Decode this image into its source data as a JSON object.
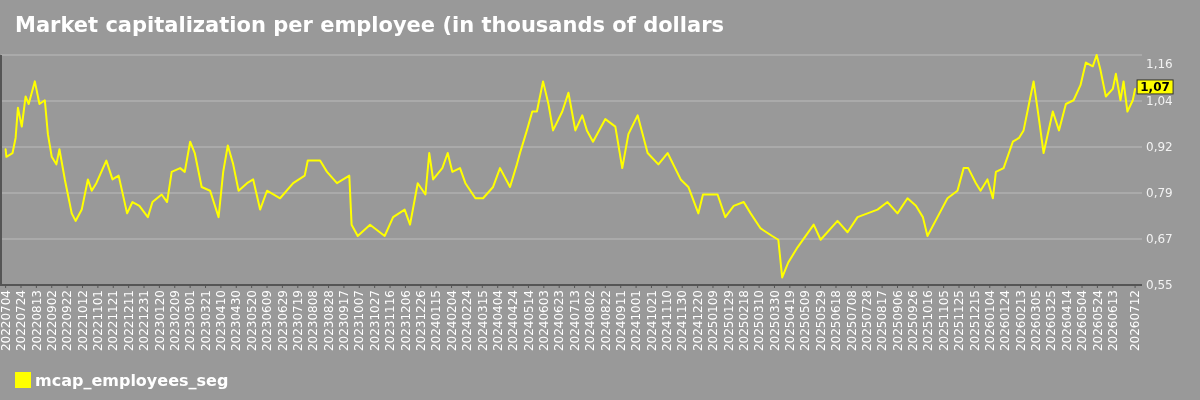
{
  "chart_data": {
    "type": "line",
    "title": "Market capitalization per employee (in thousands of dollars",
    "x": [
      "2022-07-04",
      "2022-07-05",
      "2022-07-13",
      "2022-07-17",
      "2022-07-20",
      "2022-07-25",
      "2022-07-30",
      "2022-08-03",
      "2022-08-11",
      "2022-08-17",
      "2022-08-24",
      "2022-08-28",
      "2022-09-02",
      "2022-09-08",
      "2022-09-12",
      "2022-09-19",
      "2022-09-28",
      "2022-10-03",
      "2022-10-11",
      "2022-10-19",
      "2022-10-24",
      "2022-10-30",
      "2022-11-12",
      "2022-11-20",
      "2022-11-28",
      "2022-12-09",
      "2022-12-16",
      "2022-12-25",
      "2023-01-05",
      "2023-01-11",
      "2023-01-23",
      "2023-01-30",
      "2023-02-05",
      "2023-02-16",
      "2023-02-22",
      "2023-03-01",
      "2023-03-07",
      "2023-03-16",
      "2023-03-27",
      "2023-04-07",
      "2023-04-13",
      "2023-04-19",
      "2023-04-26",
      "2023-05-03",
      "2023-05-14",
      "2023-05-22",
      "2023-05-31",
      "2023-06-09",
      "2023-06-26",
      "2023-07-13",
      "2023-07-28",
      "2023-08-01",
      "2023-08-17",
      "2023-08-26",
      "2023-09-08",
      "2023-09-24",
      "2023-09-27",
      "2023-10-05",
      "2023-10-21",
      "2023-11-09",
      "2023-11-20",
      "2023-12-05",
      "2023-12-12",
      "2023-12-22",
      "2024-01-01",
      "2024-01-06",
      "2024-01-11",
      "2024-01-23",
      "2024-01-30",
      "2024-02-05",
      "2024-02-15",
      "2024-02-22",
      "2024-03-06",
      "2024-03-16",
      "2024-03-29",
      "2024-04-07",
      "2024-04-20",
      "2024-04-29",
      "2024-05-03",
      "2024-05-12",
      "2024-05-19",
      "2024-05-25",
      "2024-06-02",
      "2024-06-09",
      "2024-06-15",
      "2024-06-27",
      "2024-07-05",
      "2024-07-14",
      "2024-07-23",
      "2024-07-29",
      "2024-08-06",
      "2024-08-22",
      "2024-09-04",
      "2024-09-13",
      "2024-09-21",
      "2024-10-03",
      "2024-10-16",
      "2024-10-30",
      "2024-11-11",
      "2024-11-28",
      "2024-12-08",
      "2024-12-21",
      "2024-12-27",
      "2025-01-15",
      "2025-01-25",
      "2025-02-05",
      "2025-02-18",
      "2025-02-27",
      "2025-03-12",
      "2025-03-27",
      "2025-04-04",
      "2025-04-09",
      "2025-04-17",
      "2025-04-29",
      "2025-05-20",
      "2025-05-29",
      "2025-06-20",
      "2025-07-03",
      "2025-07-16",
      "2025-07-29",
      "2025-08-11",
      "2025-08-24",
      "2025-09-06",
      "2025-09-19",
      "2025-09-30",
      "2025-10-09",
      "2025-10-15",
      "2025-10-28",
      "2025-11-10",
      "2025-11-23",
      "2025-12-01",
      "2025-12-07",
      "2025-12-17",
      "2025-12-23",
      "2026-01-01",
      "2026-01-08",
      "2026-01-12",
      "2026-01-22",
      "2026-02-03",
      "2026-02-11",
      "2026-02-17",
      "2026-02-24",
      "2026-03-02",
      "2026-03-09",
      "2026-03-15",
      "2026-03-27",
      "2026-04-04",
      "2026-04-13",
      "2026-04-23",
      "2026-05-02",
      "2026-05-09",
      "2026-05-18",
      "2026-05-23",
      "2026-05-28",
      "2026-06-04",
      "2026-06-13",
      "2026-06-17",
      "2026-06-23",
      "2026-06-27",
      "2026-07-02",
      "2026-07-09",
      "2026-07-12"
    ],
    "series": [
      {
        "name": "mcap_employees_seg",
        "color": "#ffff00",
        "values": [
          0.91,
          0.89,
          0.9,
          0.94,
          1.02,
          0.97,
          1.05,
          1.03,
          1.09,
          1.03,
          1.04,
          0.95,
          0.89,
          0.87,
          0.91,
          0.83,
          0.74,
          0.72,
          0.75,
          0.83,
          0.8,
          0.82,
          0.88,
          0.83,
          0.84,
          0.74,
          0.77,
          0.76,
          0.73,
          0.77,
          0.79,
          0.77,
          0.85,
          0.86,
          0.85,
          0.93,
          0.9,
          0.81,
          0.8,
          0.73,
          0.85,
          0.92,
          0.87,
          0.8,
          0.82,
          0.83,
          0.75,
          0.8,
          0.78,
          0.82,
          0.84,
          0.88,
          0.88,
          0.85,
          0.82,
          0.84,
          0.71,
          0.68,
          0.71,
          0.68,
          0.73,
          0.75,
          0.71,
          0.82,
          0.79,
          0.9,
          0.83,
          0.86,
          0.9,
          0.85,
          0.86,
          0.82,
          0.78,
          0.78,
          0.81,
          0.86,
          0.81,
          0.87,
          0.9,
          0.96,
          1.01,
          1.01,
          1.09,
          1.03,
          0.96,
          1.01,
          1.06,
          0.96,
          1.0,
          0.96,
          0.93,
          0.99,
          0.97,
          0.86,
          0.95,
          1.0,
          0.9,
          0.87,
          0.9,
          0.83,
          0.81,
          0.74,
          0.79,
          0.79,
          0.73,
          0.76,
          0.77,
          0.74,
          0.7,
          0.68,
          0.67,
          0.57,
          0.61,
          0.65,
          0.71,
          0.67,
          0.72,
          0.69,
          0.73,
          0.74,
          0.75,
          0.77,
          0.74,
          0.78,
          0.76,
          0.73,
          0.68,
          0.73,
          0.78,
          0.8,
          0.86,
          0.86,
          0.82,
          0.8,
          0.83,
          0.78,
          0.85,
          0.86,
          0.93,
          0.94,
          0.96,
          1.03,
          1.09,
          0.99,
          0.9,
          1.01,
          0.96,
          1.03,
          1.04,
          1.08,
          1.14,
          1.13,
          1.16,
          1.12,
          1.05,
          1.07,
          1.11,
          1.04,
          1.09,
          1.01,
          1.04,
          1.07
        ]
      }
    ],
    "xlim": [
      "2022-06-28",
      "2026-07-21"
    ],
    "xticks": [
      {
        "value": "2022-07-04",
        "label": "20220704"
      },
      {
        "value": "2022-07-24",
        "label": "20220724"
      },
      {
        "value": "2022-08-13",
        "label": "20220813"
      },
      {
        "value": "2022-09-02",
        "label": "20220902"
      },
      {
        "value": "2022-09-22",
        "label": "20220922"
      },
      {
        "value": "2022-10-12",
        "label": "20221012"
      },
      {
        "value": "2022-11-01",
        "label": "20221101"
      },
      {
        "value": "2022-11-21",
        "label": "20221121"
      },
      {
        "value": "2022-12-11",
        "label": "20221211"
      },
      {
        "value": "2022-12-31",
        "label": "20221231"
      },
      {
        "value": "2023-01-20",
        "label": "20230120"
      },
      {
        "value": "2023-02-09",
        "label": "20230209"
      },
      {
        "value": "2023-03-01",
        "label": "20230301"
      },
      {
        "value": "2023-03-21",
        "label": "20230321"
      },
      {
        "value": "2023-04-10",
        "label": "20230410"
      },
      {
        "value": "2023-04-30",
        "label": "20230430"
      },
      {
        "value": "2023-05-20",
        "label": "20230520"
      },
      {
        "value": "2023-06-09",
        "label": "20230609"
      },
      {
        "value": "2023-06-29",
        "label": "20230629"
      },
      {
        "value": "2023-07-19",
        "label": "20230719"
      },
      {
        "value": "2023-08-08",
        "label": "20230808"
      },
      {
        "value": "2023-08-28",
        "label": "20230828"
      },
      {
        "value": "2023-09-17",
        "label": "20230917"
      },
      {
        "value": "2023-10-07",
        "label": "20231007"
      },
      {
        "value": "2023-10-27",
        "label": "20231027"
      },
      {
        "value": "2023-11-16",
        "label": "20231116"
      },
      {
        "value": "2023-12-06",
        "label": "20231206"
      },
      {
        "value": "2023-12-26",
        "label": "20231226"
      },
      {
        "value": "2024-01-15",
        "label": "20240115"
      },
      {
        "value": "2024-02-04",
        "label": "20240204"
      },
      {
        "value": "2024-02-24",
        "label": "20240224"
      },
      {
        "value": "2024-03-15",
        "label": "20240315"
      },
      {
        "value": "2024-04-04",
        "label": "20240404"
      },
      {
        "value": "2024-04-24",
        "label": "20240424"
      },
      {
        "value": "2024-05-14",
        "label": "20240514"
      },
      {
        "value": "2024-06-03",
        "label": "20240603"
      },
      {
        "value": "2024-06-23",
        "label": "20240623"
      },
      {
        "value": "2024-07-13",
        "label": "20240713"
      },
      {
        "value": "2024-08-02",
        "label": "20240802"
      },
      {
        "value": "2024-08-22",
        "label": "20240822"
      },
      {
        "value": "2024-09-11",
        "label": "20240911"
      },
      {
        "value": "2024-10-01",
        "label": "20241001"
      },
      {
        "value": "2024-10-21",
        "label": "20241021"
      },
      {
        "value": "2024-11-10",
        "label": "20241110"
      },
      {
        "value": "2024-11-30",
        "label": "20241130"
      },
      {
        "value": "2024-12-20",
        "label": "20241220"
      },
      {
        "value": "2025-01-09",
        "label": "20250109"
      },
      {
        "value": "2025-01-29",
        "label": "20250129"
      },
      {
        "value": "2025-02-18",
        "label": "20250218"
      },
      {
        "value": "2025-03-10",
        "label": "20250310"
      },
      {
        "value": "2025-03-30",
        "label": "20250330"
      },
      {
        "value": "2025-04-19",
        "label": "20250419"
      },
      {
        "value": "2025-05-09",
        "label": "20250509"
      },
      {
        "value": "2025-05-29",
        "label": "20250529"
      },
      {
        "value": "2025-06-18",
        "label": "20250618"
      },
      {
        "value": "2025-07-08",
        "label": "20250708"
      },
      {
        "value": "2025-07-28",
        "label": "20250728"
      },
      {
        "value": "2025-08-17",
        "label": "20250817"
      },
      {
        "value": "2025-09-06",
        "label": "20250906"
      },
      {
        "value": "2025-09-26",
        "label": "20250926"
      },
      {
        "value": "2025-10-16",
        "label": "20251016"
      },
      {
        "value": "2025-11-05",
        "label": "20251105"
      },
      {
        "value": "2025-11-25",
        "label": "20251125"
      },
      {
        "value": "2025-12-15",
        "label": "20251215"
      },
      {
        "value": "2026-01-04",
        "label": "20260104"
      },
      {
        "value": "2026-01-24",
        "label": "20260124"
      },
      {
        "value": "2026-02-13",
        "label": "20260213"
      },
      {
        "value": "2026-03-05",
        "label": "20260305"
      },
      {
        "value": "2026-03-25",
        "label": "20260325"
      },
      {
        "value": "2026-04-14",
        "label": "20260414"
      },
      {
        "value": "2026-05-04",
        "label": "20260504"
      },
      {
        "value": "2026-05-24",
        "label": "20260524"
      },
      {
        "value": "2026-06-13",
        "label": "20260613"
      },
      {
        "value": "2026-07-12",
        "label": "20260712"
      }
    ],
    "ylim": [
      0.55,
      1.16
    ],
    "yticks": [
      {
        "value": 0.55,
        "label": "0,55"
      },
      {
        "value": 0.672,
        "label": "0,67"
      },
      {
        "value": 0.794,
        "label": "0,79"
      },
      {
        "value": 0.916,
        "label": "0,92"
      },
      {
        "value": 1.038,
        "label": "1,04"
      },
      {
        "value": 1.16,
        "label": "1,16"
      }
    ],
    "grid": "y",
    "legend": "bottom left",
    "annotations": [
      {
        "text": "1,07",
        "x": "2026-07-12",
        "y": 1.07
      }
    ]
  }
}
